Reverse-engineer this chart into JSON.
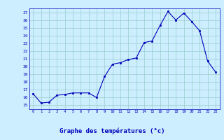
{
  "x": [
    0,
    1,
    2,
    3,
    4,
    5,
    6,
    7,
    8,
    9,
    10,
    11,
    12,
    13,
    14,
    15,
    16,
    17,
    18,
    19,
    20,
    21,
    22,
    23
  ],
  "y": [
    16.5,
    15.3,
    15.4,
    16.3,
    16.4,
    16.6,
    16.6,
    16.6,
    16.0,
    18.7,
    20.3,
    20.5,
    20.9,
    21.1,
    23.1,
    23.3,
    25.3,
    27.1,
    26.0,
    26.9,
    25.8,
    24.6,
    20.7,
    19.3
  ],
  "line_color": "#0000bb",
  "marker_color": "#0000bb",
  "bg_color": "#cceeff",
  "grid_color": "#99cccc",
  "xlabel": "Graphe des températures (°c)",
  "xlabel_color": "#0000bb",
  "ylim": [
    14.5,
    27.5
  ],
  "yticks": [
    15,
    16,
    17,
    18,
    19,
    20,
    21,
    22,
    23,
    24,
    25,
    26,
    27
  ],
  "xticks": [
    0,
    1,
    2,
    3,
    4,
    5,
    6,
    7,
    8,
    9,
    10,
    11,
    12,
    13,
    14,
    15,
    16,
    17,
    18,
    19,
    20,
    21,
    22,
    23
  ],
  "xlim": [
    -0.5,
    23.5
  ]
}
